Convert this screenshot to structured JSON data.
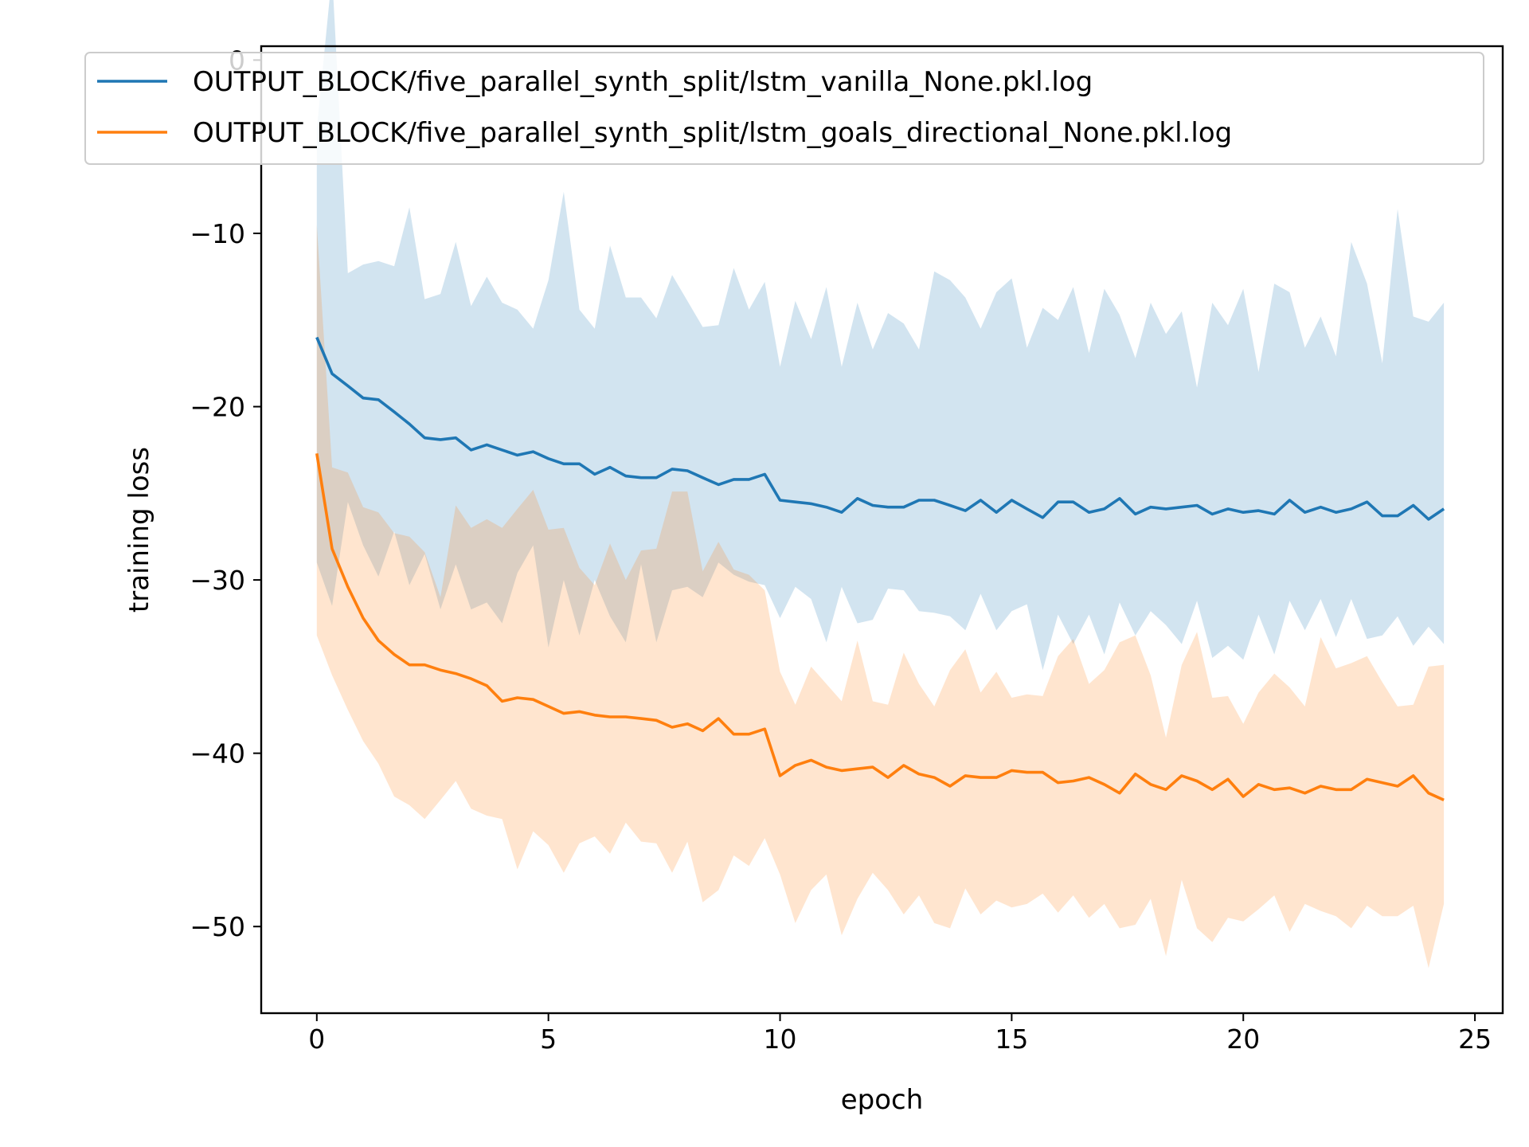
{
  "chart_data": {
    "type": "line",
    "title": "",
    "xlabel": "epoch",
    "ylabel": "training loss",
    "xlim": [
      -1.2,
      25.6
    ],
    "ylim": [
      -55,
      0.8
    ],
    "xticks": [
      0,
      5,
      10,
      15,
      20,
      25
    ],
    "yticks": [
      0,
      -10,
      -20,
      -30,
      -40,
      -50
    ],
    "grid": false,
    "legend_position": "top",
    "series": [
      {
        "name": "OUTPUT_BLOCK/five_parallel_synth_split/lstm_vanilla_None.pkl.log",
        "color": "#1f77b4",
        "band_color": "#1f77b4",
        "band_opacity": 0.2,
        "x": [
          0,
          0.33,
          0.67,
          1.0,
          1.33,
          1.67,
          2.0,
          2.33,
          2.67,
          3.0,
          3.33,
          3.67,
          4.0,
          4.33,
          4.67,
          5.0,
          5.33,
          5.67,
          6.0,
          6.33,
          6.67,
          7.0,
          7.33,
          7.67,
          8.0,
          8.33,
          8.67,
          9.0,
          9.33,
          9.67,
          10.0,
          10.33,
          10.67,
          11.0,
          11.33,
          11.67,
          12.0,
          12.33,
          12.67,
          13.0,
          13.33,
          13.67,
          14.0,
          14.33,
          14.67,
          15.0,
          15.33,
          15.67,
          16.0,
          16.33,
          16.67,
          17.0,
          17.33,
          17.67,
          18.0,
          18.33,
          18.67,
          19.0,
          19.33,
          19.67,
          20.0,
          20.33,
          20.67,
          21.0,
          21.33,
          21.67,
          22.0,
          22.33,
          22.67,
          23.0,
          23.33,
          23.67,
          24.0,
          24.33
        ],
        "mean": [
          -16.0,
          -18.1,
          -18.8,
          -19.5,
          -19.6,
          -20.3,
          -21.0,
          -21.8,
          -21.9,
          -21.8,
          -22.5,
          -22.2,
          -22.5,
          -22.8,
          -22.6,
          -23.0,
          -23.3,
          -23.3,
          -23.9,
          -23.5,
          -24.0,
          -24.1,
          -24.1,
          -23.6,
          -23.7,
          -24.1,
          -24.5,
          -24.2,
          -24.2,
          -23.9,
          -25.4,
          -25.5,
          -25.6,
          -25.8,
          -26.1,
          -25.3,
          -25.7,
          -25.8,
          -25.8,
          -25.4,
          -25.4,
          -25.7,
          -26.0,
          -25.4,
          -26.1,
          -25.4,
          -25.9,
          -26.4,
          -25.5,
          -25.5,
          -26.1,
          -25.9,
          -25.3,
          -26.2,
          -25.8,
          -25.9,
          -25.8,
          -25.7,
          -26.2,
          -25.9,
          -26.1,
          -26.0,
          -26.2,
          -25.4,
          -26.1,
          -25.8,
          -26.1,
          -25.9,
          -25.5,
          -26.3,
          -26.3,
          -25.7,
          -26.5,
          -25.9
        ],
        "upper": [
          -4.0,
          5.0,
          -12.3,
          -11.8,
          -11.6,
          -11.9,
          -8.5,
          -13.8,
          -13.5,
          -10.5,
          -14.2,
          -12.5,
          -14.0,
          -14.4,
          -15.5,
          -12.7,
          -7.6,
          -14.4,
          -15.5,
          -10.7,
          -13.7,
          -13.7,
          -14.9,
          -12.4,
          -13.9,
          -15.4,
          -15.3,
          -12.0,
          -14.4,
          -12.8,
          -17.7,
          -13.9,
          -16.1,
          -13.1,
          -17.7,
          -14.0,
          -16.7,
          -14.6,
          -15.2,
          -16.7,
          -12.2,
          -12.7,
          -13.7,
          -15.5,
          -13.4,
          -12.6,
          -16.6,
          -14.3,
          -15.0,
          -13.1,
          -16.9,
          -13.2,
          -14.7,
          -17.2,
          -14.0,
          -15.8,
          -14.5,
          -18.9,
          -14.0,
          -15.3,
          -13.2,
          -18.0,
          -12.9,
          -13.4,
          -16.6,
          -14.8,
          -17.1,
          -10.5,
          -12.9,
          -17.5,
          -8.6,
          -14.8,
          -15.1,
          -14.0
        ],
        "lower": [
          -29.0,
          -31.5,
          -25.5,
          -28.0,
          -29.8,
          -27.2,
          -30.3,
          -28.5,
          -31.7,
          -29.1,
          -31.7,
          -31.3,
          -32.5,
          -29.6,
          -28.0,
          -33.9,
          -30.0,
          -33.2,
          -30.0,
          -32.1,
          -33.6,
          -29.1,
          -33.6,
          -30.6,
          -30.4,
          -31.0,
          -29.0,
          -29.7,
          -30.1,
          -30.3,
          -32.2,
          -30.4,
          -31.1,
          -33.6,
          -30.4,
          -32.5,
          -32.3,
          -30.5,
          -30.6,
          -31.8,
          -31.9,
          -32.1,
          -32.9,
          -30.8,
          -32.9,
          -31.8,
          -31.4,
          -35.2,
          -32.0,
          -33.7,
          -32.0,
          -34.3,
          -31.3,
          -33.2,
          -31.8,
          -32.6,
          -33.7,
          -31.2,
          -34.5,
          -33.8,
          -34.6,
          -32.0,
          -34.3,
          -31.2,
          -32.9,
          -31.1,
          -33.3,
          -31.1,
          -33.4,
          -33.2,
          -32.1,
          -33.8,
          -32.7,
          -33.7
        ]
      },
      {
        "name": "OUTPUT_BLOCK/five_parallel_synth_split/lstm_goals_directional_None.pkl.log",
        "color": "#ff7f0e",
        "band_color": "#ff7f0e",
        "band_opacity": 0.2,
        "x": [
          0,
          0.33,
          0.67,
          1.0,
          1.33,
          1.67,
          2.0,
          2.33,
          2.67,
          3.0,
          3.33,
          3.67,
          4.0,
          4.33,
          4.67,
          5.0,
          5.33,
          5.67,
          6.0,
          6.33,
          6.67,
          7.0,
          7.33,
          7.67,
          8.0,
          8.33,
          8.67,
          9.0,
          9.33,
          9.67,
          10.0,
          10.33,
          10.67,
          11.0,
          11.33,
          11.67,
          12.0,
          12.33,
          12.67,
          13.0,
          13.33,
          13.67,
          14.0,
          14.33,
          14.67,
          15.0,
          15.33,
          15.67,
          16.0,
          16.33,
          16.67,
          17.0,
          17.33,
          17.67,
          18.0,
          18.33,
          18.67,
          19.0,
          19.33,
          19.67,
          20.0,
          20.33,
          20.67,
          21.0,
          21.33,
          21.67,
          22.0,
          22.33,
          22.67,
          23.0,
          23.33,
          23.67,
          24.0,
          24.33
        ],
        "mean": [
          -22.7,
          -28.2,
          -30.4,
          -32.2,
          -33.5,
          -34.3,
          -34.9,
          -34.9,
          -35.2,
          -35.4,
          -35.7,
          -36.1,
          -37.0,
          -36.8,
          -36.9,
          -37.3,
          -37.7,
          -37.6,
          -37.8,
          -37.9,
          -37.9,
          -38.0,
          -38.1,
          -38.5,
          -38.3,
          -38.7,
          -38.0,
          -38.9,
          -38.9,
          -38.6,
          -41.3,
          -40.7,
          -40.4,
          -40.8,
          -41.0,
          -40.9,
          -40.8,
          -41.4,
          -40.7,
          -41.2,
          -41.4,
          -41.9,
          -41.3,
          -41.4,
          -41.4,
          -41.0,
          -41.1,
          -41.1,
          -41.7,
          -41.6,
          -41.4,
          -41.8,
          -42.3,
          -41.2,
          -41.8,
          -42.1,
          -41.3,
          -41.6,
          -42.1,
          -41.5,
          -42.5,
          -41.8,
          -42.1,
          -42.0,
          -42.3,
          -41.9,
          -42.1,
          -42.1,
          -41.5,
          -41.7,
          -41.9,
          -41.3,
          -42.3,
          -42.7
        ],
        "upper": [
          -9.5,
          -23.5,
          -23.8,
          -25.8,
          -26.1,
          -27.3,
          -27.5,
          -28.4,
          -31.0,
          -25.7,
          -27.0,
          -26.5,
          -27.0,
          -25.9,
          -24.8,
          -27.1,
          -27.0,
          -29.3,
          -30.3,
          -27.9,
          -30.0,
          -28.3,
          -28.2,
          -24.9,
          -24.9,
          -29.5,
          -27.8,
          -29.4,
          -29.7,
          -30.6,
          -35.3,
          -37.2,
          -35.0,
          -36.0,
          -37.0,
          -33.5,
          -37.0,
          -37.2,
          -34.2,
          -36.0,
          -37.3,
          -35.2,
          -34.0,
          -36.5,
          -35.3,
          -36.8,
          -36.6,
          -36.7,
          -34.4,
          -33.4,
          -36.0,
          -35.2,
          -33.6,
          -33.2,
          -35.5,
          -39.1,
          -34.9,
          -33.0,
          -36.8,
          -36.7,
          -38.3,
          -36.5,
          -35.4,
          -36.2,
          -37.3,
          -33.3,
          -35.1,
          -34.8,
          -34.4,
          -35.9,
          -37.3,
          -37.2,
          -35.0,
          -34.9
        ],
        "lower": [
          -33.2,
          -35.5,
          -37.5,
          -39.3,
          -40.6,
          -42.5,
          -43.0,
          -43.8,
          -42.7,
          -41.6,
          -43.2,
          -43.6,
          -43.8,
          -46.7,
          -44.5,
          -45.3,
          -46.9,
          -45.2,
          -44.8,
          -45.8,
          -44.0,
          -45.1,
          -45.2,
          -46.9,
          -45.1,
          -48.6,
          -47.9,
          -45.9,
          -46.5,
          -44.9,
          -47.0,
          -49.8,
          -47.9,
          -47.0,
          -50.5,
          -48.4,
          -46.9,
          -47.9,
          -49.3,
          -48.2,
          -49.8,
          -50.1,
          -47.8,
          -49.3,
          -48.5,
          -48.9,
          -48.7,
          -48.1,
          -49.2,
          -48.2,
          -49.5,
          -48.7,
          -50.1,
          -49.9,
          -48.4,
          -51.7,
          -47.3,
          -50.1,
          -50.9,
          -49.5,
          -49.7,
          -49.0,
          -48.2,
          -50.3,
          -48.7,
          -49.1,
          -49.4,
          -50.1,
          -48.8,
          -49.4,
          -49.4,
          -48.8,
          -52.4,
          -48.7
        ]
      }
    ]
  }
}
